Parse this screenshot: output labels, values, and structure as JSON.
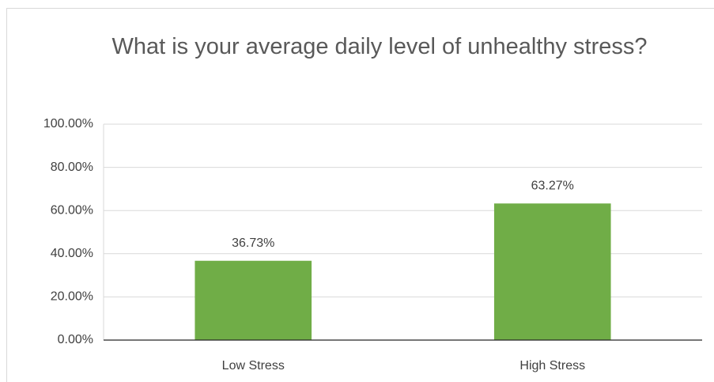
{
  "chart_data": {
    "type": "bar",
    "title": "What is your average daily level of unhealthy stress?",
    "categories": [
      "Low Stress",
      "High Stress"
    ],
    "values": [
      36.73,
      63.27
    ],
    "value_labels": [
      "36.73%",
      "63.27%"
    ],
    "color": "#70ad47",
    "ylim": [
      0,
      100
    ],
    "yticks": [
      {
        "value": 0,
        "label": "0.00%"
      },
      {
        "value": 20,
        "label": "20.00%"
      },
      {
        "value": 40,
        "label": "40.00%"
      },
      {
        "value": 60,
        "label": "60.00%"
      },
      {
        "value": 80,
        "label": "80.00%"
      },
      {
        "value": 100,
        "label": "100.00%"
      }
    ],
    "grid": true
  }
}
